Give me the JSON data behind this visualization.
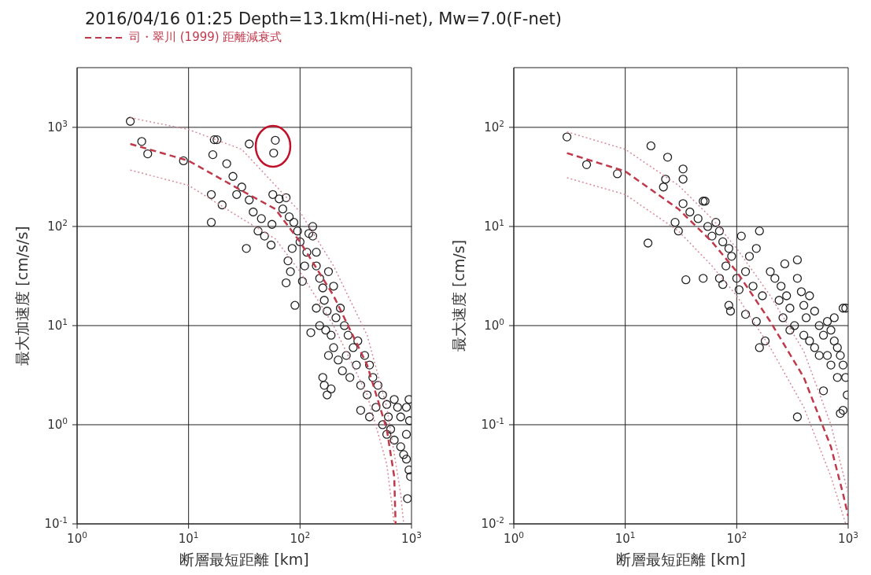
{
  "chart_data": [
    {
      "type": "scatter",
      "title": "2016/04/16 01:25 Depth=13.1km(Hi-net), Mw=7.0(F-net)",
      "legend": "top left",
      "log": "xy",
      "grid": true,
      "xlabel": "断層最短距離 [km]",
      "ylabel": "最大加速度 [cm/s/s]",
      "xlim": [
        1,
        1000
      ],
      "ylim": [
        0.1,
        4000
      ],
      "xticks": [
        {
          "value": 1,
          "label": "10$^{0}$"
        },
        {
          "value": 10,
          "label": "10$^{1}$"
        },
        {
          "value": 100,
          "label": "10$^{2}$"
        },
        {
          "value": 1000,
          "label": "10$^{3}$"
        }
      ],
      "yticks": [
        {
          "value": 0.1,
          "label": "10$^{-1}$"
        },
        {
          "value": 1,
          "label": "10$^{0}$"
        },
        {
          "value": 10,
          "label": "10$^{1}$"
        },
        {
          "value": 100,
          "label": "10$^{2}$"
        },
        {
          "value": 1000,
          "label": "10$^{3}$"
        }
      ],
      "series": [
        {
          "type": "scatter",
          "marker": "circle",
          "color": "#222222",
          "x": [
            3,
            3.8,
            4.3,
            9,
            17,
            18,
            16.5,
            22,
            25,
            35,
            60,
            58,
            16,
            16,
            20,
            27,
            30,
            35,
            38,
            45,
            42,
            33,
            48,
            56,
            55,
            57,
            65,
            75,
            70,
            80,
            88,
            95,
            100,
            85,
            78,
            82,
            75,
            90,
            120,
            130,
            115,
            110,
            105,
            140,
            150,
            160,
            165,
            175,
            140,
            125,
            150,
            170,
            190,
            210,
            230,
            250,
            270,
            200,
            180,
            220,
            240,
            160,
            165,
            190,
            175,
            260,
            300,
            320,
            350,
            280,
            330,
            380,
            420,
            450,
            400,
            350,
            420,
            480,
            500,
            550,
            600,
            620,
            700,
            750,
            800,
            900,
            950,
            650,
            700,
            800,
            850,
            900,
            950,
            980,
            600,
            550,
            900,
            960,
            920,
            130,
            140,
            180,
            200
          ],
          "values": [
            1150,
            720,
            540,
            460,
            750,
            750,
            530,
            430,
            320,
            680,
            740,
            550,
            210,
            110,
            165,
            210,
            250,
            185,
            140,
            120,
            90,
            60,
            80,
            105,
            65,
            210,
            190,
            195,
            150,
            125,
            110,
            90,
            70,
            60,
            45,
            35,
            27,
            16,
            85,
            80,
            55,
            40,
            28,
            40,
            30,
            24,
            18,
            14,
            15,
            8.5,
            10,
            9,
            8,
            12,
            15,
            10,
            8,
            6,
            5,
            4.5,
            3.5,
            3,
            2.5,
            2.3,
            2,
            5,
            6,
            4,
            2.5,
            3,
            7,
            5,
            4,
            3,
            2,
            1.4,
            1.2,
            1.5,
            2.5,
            2,
            1.6,
            1.2,
            1.8,
            1.5,
            1.2,
            1.5,
            1.8,
            0.9,
            0.7,
            0.6,
            0.5,
            0.45,
            0.35,
            0.3,
            0.8,
            1,
            0.8,
            1.1,
            0.18,
            100,
            55,
            35,
            25
          ]
        },
        {
          "type": "line",
          "name": "司・翠川 (1999) 距離減衰式",
          "line_style": "dashed",
          "marker": "none",
          "color": "#c0394b",
          "x": [
            3,
            10,
            30,
            60,
            100,
            200,
            400,
            600,
            700,
            720
          ],
          "values": [
            680,
            460,
            230,
            150,
            70,
            20,
            4,
            0.9,
            0.3,
            0.1
          ]
        },
        {
          "type": "line",
          "line_style": "dotted",
          "marker": "none",
          "color": "#d98a96",
          "x": [
            3,
            10,
            30,
            60,
            100,
            200,
            400,
            600,
            800,
            850
          ],
          "values": [
            1250,
            950,
            600,
            260,
            140,
            40,
            8,
            1.5,
            0.2,
            0.1
          ]
        },
        {
          "type": "line",
          "line_style": "dotted",
          "marker": "none",
          "color": "#d98a96",
          "x": [
            3,
            10,
            30,
            60,
            100,
            200,
            400,
            600,
            700
          ],
          "values": [
            370,
            260,
            120,
            75,
            35,
            10,
            2,
            0.4,
            0.1
          ]
        }
      ]
    },
    {
      "type": "scatter",
      "log": "xy",
      "grid": true,
      "xlabel": "断層最短距離 [km]",
      "ylabel": "最大速度 [cm/s]",
      "xlim": [
        1,
        1000
      ],
      "ylim": [
        0.01,
        400
      ],
      "xticks": [
        {
          "value": 1,
          "label": "10$^{0}$"
        },
        {
          "value": 10,
          "label": "10$^{1}$"
        },
        {
          "value": 100,
          "label": "10$^{2}$"
        },
        {
          "value": 1000,
          "label": "10$^{3}$"
        }
      ],
      "yticks": [
        {
          "value": 0.01,
          "label": "10$^{-2}$"
        },
        {
          "value": 0.1,
          "label": "10$^{-1}$"
        },
        {
          "value": 1,
          "label": "10$^{0}$"
        },
        {
          "value": 10,
          "label": "10$^{1}$"
        },
        {
          "value": 100,
          "label": "10$^{2}$"
        }
      ],
      "series": [
        {
          "type": "scatter",
          "marker": "circle",
          "color": "#222222",
          "x": [
            3,
            4.5,
            8.5,
            17,
            24,
            22,
            23,
            33,
            33,
            16,
            35,
            50,
            28,
            30,
            33,
            38,
            45,
            50,
            52,
            55,
            60,
            65,
            70,
            75,
            85,
            90,
            80,
            70,
            75,
            85,
            88,
            100,
            105,
            110,
            130,
            150,
            160,
            120,
            150,
            160,
            180,
            170,
            200,
            220,
            250,
            280,
            300,
            270,
            350,
            350,
            330,
            380,
            400,
            420,
            450,
            500,
            550,
            600,
            650,
            700,
            750,
            800,
            850,
            900,
            950,
            980,
            700,
            800,
            850,
            900,
            950,
            900,
            350,
            600,
            240,
            260,
            300,
            400,
            450,
            500,
            550,
            650,
            750,
            120,
            140
          ],
          "values": [
            80,
            42,
            34,
            65,
            50,
            25,
            30,
            38,
            30,
            6.8,
            2.9,
            3,
            11,
            9,
            17,
            14,
            12,
            18,
            18,
            10,
            8,
            11,
            9,
            7,
            6,
            5,
            4,
            3,
            2.6,
            1.6,
            1.4,
            3,
            2.3,
            8,
            5,
            6,
            9,
            1.3,
            1.1,
            0.6,
            0.7,
            2,
            3.5,
            3,
            2.5,
            2,
            1.5,
            4.2,
            4.6,
            3,
            1,
            2.2,
            1.6,
            1.2,
            2,
            1.4,
            1,
            0.8,
            1.1,
            0.9,
            0.7,
            0.6,
            0.5,
            0.4,
            0.3,
            0.2,
            0.4,
            0.3,
            0.13,
            0.14,
            1.5,
            1.5,
            0.12,
            0.22,
            1.8,
            1.2,
            0.9,
            0.8,
            0.7,
            0.6,
            0.5,
            0.5,
            1.2,
            3.5,
            2.5
          ]
        },
        {
          "type": "line",
          "line_style": "dashed",
          "marker": "none",
          "color": "#c0394b",
          "x": [
            3,
            10,
            30,
            60,
            100,
            200,
            400,
            700,
            900,
            1000
          ],
          "values": [
            55,
            36,
            15,
            7,
            3.5,
            1.1,
            0.3,
            0.06,
            0.02,
            0.012
          ]
        },
        {
          "type": "line",
          "line_style": "dotted",
          "marker": "none",
          "color": "#d98a96",
          "x": [
            3,
            10,
            30,
            60,
            100,
            200,
            400,
            700,
            1000
          ],
          "values": [
            90,
            60,
            26,
            12,
            6,
            2,
            0.55,
            0.1,
            0.02
          ]
        },
        {
          "type": "line",
          "line_style": "dotted",
          "marker": "none",
          "color": "#d98a96",
          "x": [
            3,
            10,
            30,
            60,
            100,
            200,
            400,
            700,
            950
          ],
          "values": [
            31,
            21,
            9,
            4,
            2,
            0.6,
            0.15,
            0.03,
            0.01
          ]
        }
      ]
    }
  ]
}
